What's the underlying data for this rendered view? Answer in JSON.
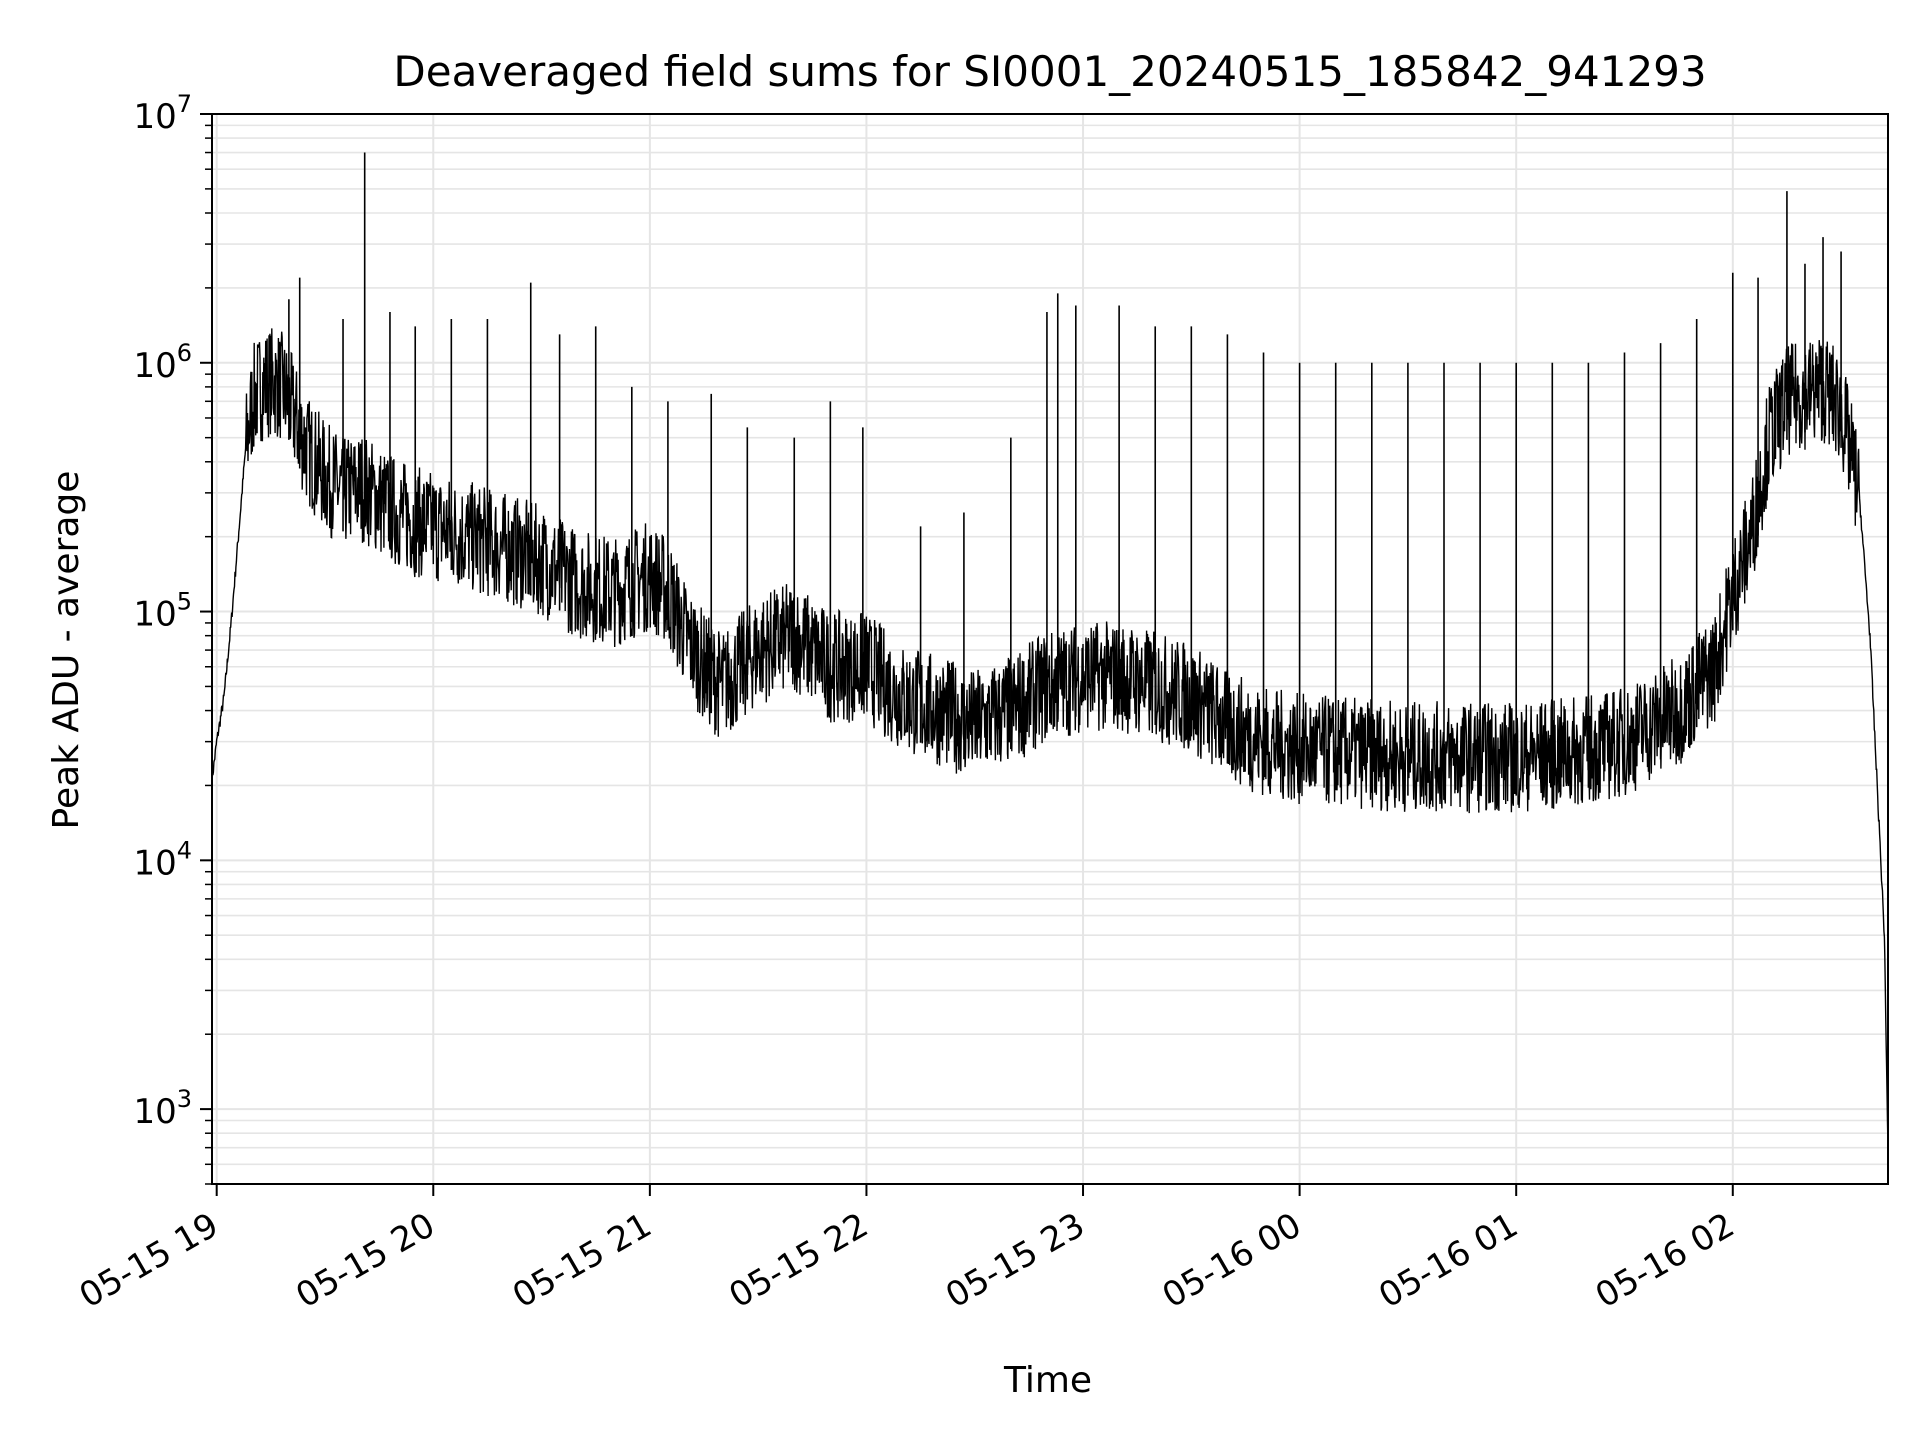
{
  "chart_data": {
    "type": "line",
    "title": "Deaveraged field sums for SI0001_20240515_185842_941293",
    "xlabel": "Time",
    "ylabel": "Peak ADU - average",
    "yscale": "log",
    "ylim": [
      500,
      10000000
    ],
    "xlim": [
      "2024-05-15 18:58:42",
      "2024-05-16 02:43:00"
    ],
    "grid": true,
    "line_color": "#000000",
    "grid_color": "#e5e5e5",
    "x_ticks": [
      {
        "label": "05-15 19",
        "t": "2024-05-15 19:00"
      },
      {
        "label": "05-15 20",
        "t": "2024-05-15 20:00"
      },
      {
        "label": "05-15 21",
        "t": "2024-05-15 21:00"
      },
      {
        "label": "05-15 22",
        "t": "2024-05-15 22:00"
      },
      {
        "label": "05-15 23",
        "t": "2024-05-15 23:00"
      },
      {
        "label": "05-16 00",
        "t": "2024-05-16 00:00"
      },
      {
        "label": "05-16 01",
        "t": "2024-05-16 01:00"
      },
      {
        "label": "05-16 02",
        "t": "2024-05-16 02:00"
      }
    ],
    "y_ticks": [
      {
        "base": "10",
        "exp": "3",
        "value": 1000
      },
      {
        "base": "10",
        "exp": "4",
        "value": 10000
      },
      {
        "base": "10",
        "exp": "5",
        "value": 100000
      },
      {
        "base": "10",
        "exp": "6",
        "value": 1000000
      },
      {
        "base": "10",
        "exp": "7",
        "value": 10000000
      }
    ],
    "series": [
      {
        "x": [
          "2024-05-15 18:58:42",
          "2024-05-15 19:00",
          "2024-05-15 19:02",
          "2024-05-15 19:04",
          "2024-05-15 19:06",
          "2024-05-15 19:08",
          "2024-05-15 19:10",
          "2024-05-15 19:12",
          "2024-05-15 19:15",
          "2024-05-15 19:18",
          "2024-05-15 19:20",
          "2024-05-15 19:25",
          "2024-05-15 19:30",
          "2024-05-15 19:35",
          "2024-05-15 19:40",
          "2024-05-15 19:45",
          "2024-05-15 19:50",
          "2024-05-15 19:55",
          "2024-05-15 20:00",
          "2024-05-15 20:10",
          "2024-05-15 20:20",
          "2024-05-15 20:30",
          "2024-05-15 20:40",
          "2024-05-15 20:50",
          "2024-05-15 21:00",
          "2024-05-15 21:05",
          "2024-05-15 21:10",
          "2024-05-15 21:15",
          "2024-05-15 21:20",
          "2024-05-15 21:30",
          "2024-05-15 21:40",
          "2024-05-15 21:50",
          "2024-05-15 22:00",
          "2024-05-15 22:10",
          "2024-05-15 22:20",
          "2024-05-15 22:30",
          "2024-05-15 22:40",
          "2024-05-15 22:50",
          "2024-05-15 23:00",
          "2024-05-15 23:10",
          "2024-05-15 23:20",
          "2024-05-15 23:30",
          "2024-05-15 23:40",
          "2024-05-15 23:50",
          "2024-05-16 00:00",
          "2024-05-16 00:15",
          "2024-05-16 00:30",
          "2024-05-16 00:45",
          "2024-05-16 01:00",
          "2024-05-16 01:15",
          "2024-05-16 01:30",
          "2024-05-16 01:45",
          "2024-05-16 01:55",
          "2024-05-16 02:00",
          "2024-05-16 02:05",
          "2024-05-16 02:10",
          "2024-05-16 02:15",
          "2024-05-16 02:20",
          "2024-05-16 02:25",
          "2024-05-16 02:30",
          "2024-05-16 02:35",
          "2024-05-16 02:38",
          "2024-05-16 02:40",
          "2024-05-16 02:42",
          "2024-05-16 02:43"
        ],
        "y": [
          21000,
          30000,
          45000,
          90000,
          200000,
          450000,
          700000,
          800000,
          850000,
          800000,
          700000,
          450000,
          350000,
          300000,
          320000,
          280000,
          250000,
          230000,
          220000,
          200000,
          180000,
          160000,
          130000,
          120000,
          140000,
          120000,
          80000,
          60000,
          50000,
          70000,
          80000,
          60000,
          60000,
          45000,
          40000,
          35000,
          40000,
          50000,
          55000,
          55000,
          50000,
          45000,
          35000,
          30000,
          28000,
          27000,
          26000,
          26000,
          26000,
          27000,
          30000,
          40000,
          60000,
          120000,
          200000,
          500000,
          700000,
          750000,
          800000,
          650000,
          300000,
          80000,
          20000,
          5000,
          700
        ],
        "spikes": [
          [
            "2024-05-15 19:20",
            1800000
          ],
          [
            "2024-05-15 19:23",
            2200000
          ],
          [
            "2024-05-15 19:35",
            1500000
          ],
          [
            "2024-05-15 19:41",
            7000000
          ],
          [
            "2024-05-15 19:48",
            1600000
          ],
          [
            "2024-05-15 19:55",
            1400000
          ],
          [
            "2024-05-15 20:05",
            1500000
          ],
          [
            "2024-05-15 20:15",
            1500000
          ],
          [
            "2024-05-15 20:27",
            2100000
          ],
          [
            "2024-05-15 20:35",
            1300000
          ],
          [
            "2024-05-15 20:45",
            1400000
          ],
          [
            "2024-05-15 20:55",
            800000
          ],
          [
            "2024-05-15 21:05",
            700000
          ],
          [
            "2024-05-15 21:17",
            750000
          ],
          [
            "2024-05-15 21:27",
            550000
          ],
          [
            "2024-05-15 21:40",
            500000
          ],
          [
            "2024-05-15 21:50",
            700000
          ],
          [
            "2024-05-15 21:59",
            550000
          ],
          [
            "2024-05-15 22:15",
            220000
          ],
          [
            "2024-05-15 22:27",
            250000
          ],
          [
            "2024-05-15 22:40",
            500000
          ],
          [
            "2024-05-15 22:50",
            1600000
          ],
          [
            "2024-05-15 22:53",
            1900000
          ],
          [
            "2024-05-15 22:58",
            1700000
          ],
          [
            "2024-05-15 23:10",
            1700000
          ],
          [
            "2024-05-15 23:20",
            1400000
          ],
          [
            "2024-05-15 23:30",
            1400000
          ],
          [
            "2024-05-15 23:40",
            1300000
          ],
          [
            "2024-05-15 23:50",
            1100000
          ],
          [
            "2024-05-16 00:00",
            1000000
          ],
          [
            "2024-05-16 00:10",
            1000000
          ],
          [
            "2024-05-16 00:20",
            1000000
          ],
          [
            "2024-05-16 00:30",
            1000000
          ],
          [
            "2024-05-16 00:40",
            1000000
          ],
          [
            "2024-05-16 00:50",
            1000000
          ],
          [
            "2024-05-16 01:00",
            1000000
          ],
          [
            "2024-05-16 01:10",
            1000000
          ],
          [
            "2024-05-16 01:20",
            1000000
          ],
          [
            "2024-05-16 01:30",
            1100000
          ],
          [
            "2024-05-16 01:40",
            1200000
          ],
          [
            "2024-05-16 01:50",
            1500000
          ],
          [
            "2024-05-16 02:00",
            2300000
          ],
          [
            "2024-05-16 02:07",
            2200000
          ],
          [
            "2024-05-16 02:15",
            4900000
          ],
          [
            "2024-05-16 02:20",
            2500000
          ],
          [
            "2024-05-16 02:25",
            3200000
          ],
          [
            "2024-05-16 02:30",
            2800000
          ]
        ]
      }
    ]
  }
}
